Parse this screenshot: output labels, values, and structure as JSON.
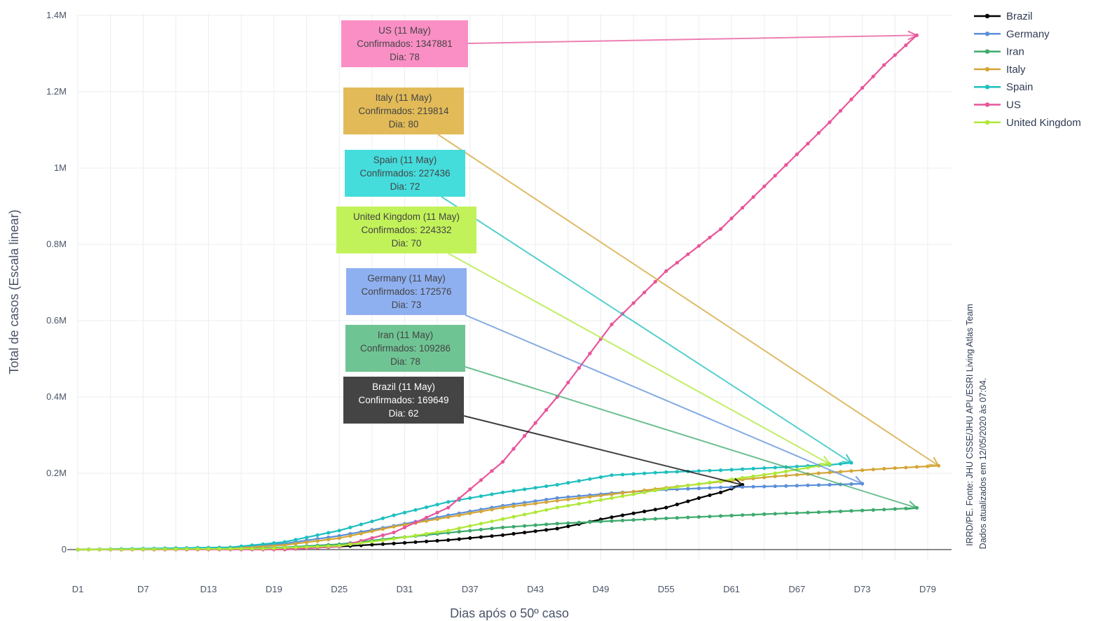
{
  "chart_data": {
    "type": "line",
    "xlabel": "Dias após o 50º caso",
    "ylabel": "Total de casos (Escala linear)",
    "xlim": [
      1,
      81
    ],
    "ylim": [
      -100000,
      1400000
    ],
    "x_ticks": [
      {
        "value": 1,
        "label": "D1"
      },
      {
        "value": 7,
        "label": "D7"
      },
      {
        "value": 13,
        "label": "D13"
      },
      {
        "value": 19,
        "label": "D19"
      },
      {
        "value": 25,
        "label": "D25"
      },
      {
        "value": 31,
        "label": "D31"
      },
      {
        "value": 37,
        "label": "D37"
      },
      {
        "value": 43,
        "label": "D43"
      },
      {
        "value": 49,
        "label": "D49"
      },
      {
        "value": 55,
        "label": "D55"
      },
      {
        "value": 61,
        "label": "D61"
      },
      {
        "value": 67,
        "label": "D67"
      },
      {
        "value": 73,
        "label": "D73"
      },
      {
        "value": 79,
        "label": "D79"
      }
    ],
    "y_ticks": [
      {
        "value": 0,
        "label": "0"
      },
      {
        "value": 200000,
        "label": "0.2M"
      },
      {
        "value": 400000,
        "label": "0.4M"
      },
      {
        "value": 600000,
        "label": "0.6M"
      },
      {
        "value": 800000,
        "label": "0.8M"
      },
      {
        "value": 1000000,
        "label": "1M"
      },
      {
        "value": 1200000,
        "label": "1.2M"
      },
      {
        "value": 1400000,
        "label": "1.4M"
      }
    ],
    "grid": true,
    "legend_position": "top-right",
    "series": [
      {
        "name": "Brazil",
        "color": "#000000",
        "last_day": 62,
        "knots": [
          [
            1,
            50
          ],
          [
            20,
            1000
          ],
          [
            25,
            8000
          ],
          [
            30,
            16000
          ],
          [
            35,
            25000
          ],
          [
            40,
            38000
          ],
          [
            45,
            55000
          ],
          [
            50,
            85000
          ],
          [
            55,
            110000
          ],
          [
            58,
            135000
          ],
          [
            60,
            150000
          ],
          [
            62,
            169649
          ]
        ]
      },
      {
        "name": "Germany",
        "color": "#5b8fd9",
        "last_day": 73,
        "knots": [
          [
            1,
            50
          ],
          [
            15,
            4000
          ],
          [
            20,
            16000
          ],
          [
            25,
            36000
          ],
          [
            30,
            62000
          ],
          [
            35,
            90000
          ],
          [
            40,
            115000
          ],
          [
            45,
            135000
          ],
          [
            50,
            148000
          ],
          [
            55,
            157000
          ],
          [
            60,
            163000
          ],
          [
            65,
            166000
          ],
          [
            70,
            170000
          ],
          [
            73,
            172576
          ]
        ]
      },
      {
        "name": "Iran",
        "color": "#3daa6d",
        "last_day": 78,
        "knots": [
          [
            1,
            50
          ],
          [
            15,
            1500
          ],
          [
            20,
            6000
          ],
          [
            25,
            14000
          ],
          [
            30,
            30000
          ],
          [
            35,
            44000
          ],
          [
            40,
            58000
          ],
          [
            45,
            68000
          ],
          [
            50,
            75000
          ],
          [
            55,
            82000
          ],
          [
            60,
            88000
          ],
          [
            65,
            94000
          ],
          [
            70,
            99000
          ],
          [
            75,
            105000
          ],
          [
            78,
            109286
          ]
        ]
      },
      {
        "name": "Italy",
        "color": "#d4a637",
        "last_day": 80,
        "knots": [
          [
            1,
            50
          ],
          [
            15,
            3000
          ],
          [
            20,
            12000
          ],
          [
            25,
            30000
          ],
          [
            30,
            60000
          ],
          [
            35,
            85000
          ],
          [
            40,
            110000
          ],
          [
            45,
            128000
          ],
          [
            50,
            145000
          ],
          [
            55,
            162000
          ],
          [
            60,
            178000
          ],
          [
            65,
            192000
          ],
          [
            70,
            202000
          ],
          [
            75,
            212000
          ],
          [
            80,
            219814
          ]
        ]
      },
      {
        "name": "Spain",
        "color": "#1fbfbf",
        "last_day": 72,
        "knots": [
          [
            1,
            50
          ],
          [
            15,
            6000
          ],
          [
            20,
            20000
          ],
          [
            25,
            50000
          ],
          [
            30,
            90000
          ],
          [
            35,
            125000
          ],
          [
            40,
            150000
          ],
          [
            45,
            170000
          ],
          [
            50,
            195000
          ],
          [
            55,
            203000
          ],
          [
            60,
            208000
          ],
          [
            65,
            215000
          ],
          [
            70,
            222000
          ],
          [
            72,
            227436
          ]
        ]
      },
      {
        "name": "US",
        "color": "#e8559a",
        "last_day": 78,
        "knots": [
          [
            1,
            50
          ],
          [
            20,
            200
          ],
          [
            25,
            8000
          ],
          [
            30,
            45000
          ],
          [
            35,
            110000
          ],
          [
            40,
            230000
          ],
          [
            45,
            400000
          ],
          [
            50,
            590000
          ],
          [
            55,
            730000
          ],
          [
            60,
            840000
          ],
          [
            65,
            980000
          ],
          [
            70,
            1120000
          ],
          [
            75,
            1270000
          ],
          [
            78,
            1347881
          ]
        ]
      },
      {
        "name": "United Kingdom",
        "color": "#aee836",
        "last_day": 70,
        "knots": [
          [
            1,
            50
          ],
          [
            18,
            2500
          ],
          [
            25,
            10000
          ],
          [
            30,
            28000
          ],
          [
            35,
            50000
          ],
          [
            40,
            80000
          ],
          [
            45,
            110000
          ],
          [
            50,
            135000
          ],
          [
            55,
            160000
          ],
          [
            60,
            180000
          ],
          [
            65,
            200000
          ],
          [
            70,
            224332
          ]
        ]
      }
    ],
    "annotations": [
      {
        "series": "US",
        "line1": "US (11 May)",
        "line2": "Confirmados: 1347881",
        "line3": "Dia: 78",
        "day": 78,
        "value": 1347881,
        "bg": "#fa8fc5",
        "fg": "#444444"
      },
      {
        "series": "Italy",
        "line1": "Italy (11 May)",
        "line2": "Confirmados: 219814",
        "line3": "Dia: 80",
        "day": 80,
        "value": 219814,
        "bg": "#e2bb58",
        "fg": "#444444"
      },
      {
        "series": "Spain",
        "line1": "Spain (11 May)",
        "line2": "Confirmados: 227436",
        "line3": "Dia: 72",
        "day": 72,
        "value": 227436,
        "bg": "#45dcdc",
        "fg": "#444444"
      },
      {
        "series": "United Kingdom",
        "line1": "United Kingdom (11 May)",
        "line2": "Confirmados: 224332",
        "line3": "Dia: 70",
        "day": 70,
        "value": 224332,
        "bg": "#c2f25a",
        "fg": "#444444"
      },
      {
        "series": "Germany",
        "line1": "Germany (11 May)",
        "line2": "Confirmados: 172576",
        "line3": "Dia: 73",
        "day": 73,
        "value": 172576,
        "bg": "#8fb0f0",
        "fg": "#444444"
      },
      {
        "series": "Iran",
        "line1": "Iran (11 May)",
        "line2": "Confirmados: 109286",
        "line3": "Dia: 78",
        "day": 78,
        "value": 109286,
        "bg": "#6fc494",
        "fg": "#444444"
      },
      {
        "series": "Brazil",
        "line1": "Brazil (11 May)",
        "line2": "Confirmados: 169649",
        "line3": "Dia: 62",
        "day": 62,
        "value": 169649,
        "bg": "#444444",
        "fg": "#ffffff"
      }
    ],
    "source_line1": "IRRD/PE. Fonte: JHU CSSE/JHU APL/ESRI Living Atlas Team",
    "source_line2": "Dados atualizados em 12/05/2020 às 07:04."
  }
}
